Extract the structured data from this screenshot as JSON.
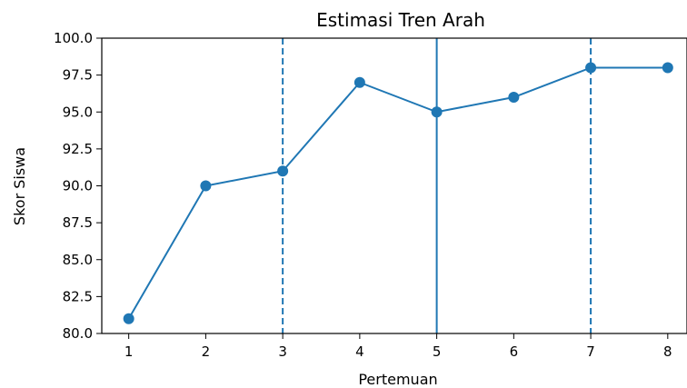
{
  "chart_data": {
    "type": "line",
    "title": "Estimasi Tren Arah",
    "xlabel": "Pertemuan",
    "ylabel": "Skor Siswa",
    "x": [
      1,
      2,
      3,
      4,
      5,
      6,
      7,
      8
    ],
    "x_tick_labels": [
      "1",
      "2",
      "3",
      "4",
      "5",
      "6",
      "7",
      "8"
    ],
    "series": [
      {
        "values": [
          81,
          90,
          91,
          97,
          95,
          96,
          98,
          98
        ],
        "color": "#1f77b4",
        "marker": "circle"
      }
    ],
    "vertical_lines": [
      {
        "x": 3,
        "style": "dashed",
        "color": "#1f77b4"
      },
      {
        "x": 5,
        "style": "solid",
        "color": "#1f77b4"
      },
      {
        "x": 7,
        "style": "dashed",
        "color": "#1f77b4"
      }
    ],
    "y_ticks": [
      80.0,
      82.5,
      85.0,
      87.5,
      90.0,
      92.5,
      95.0,
      97.5,
      100.0
    ],
    "y_tick_labels": [
      "80.0",
      "82.5",
      "85.0",
      "87.5",
      "90.0",
      "92.5",
      "95.0",
      "97.5",
      "100.0"
    ],
    "ylim": [
      80,
      100
    ],
    "xlim": [
      0.65,
      8.25
    ],
    "grid": false
  }
}
